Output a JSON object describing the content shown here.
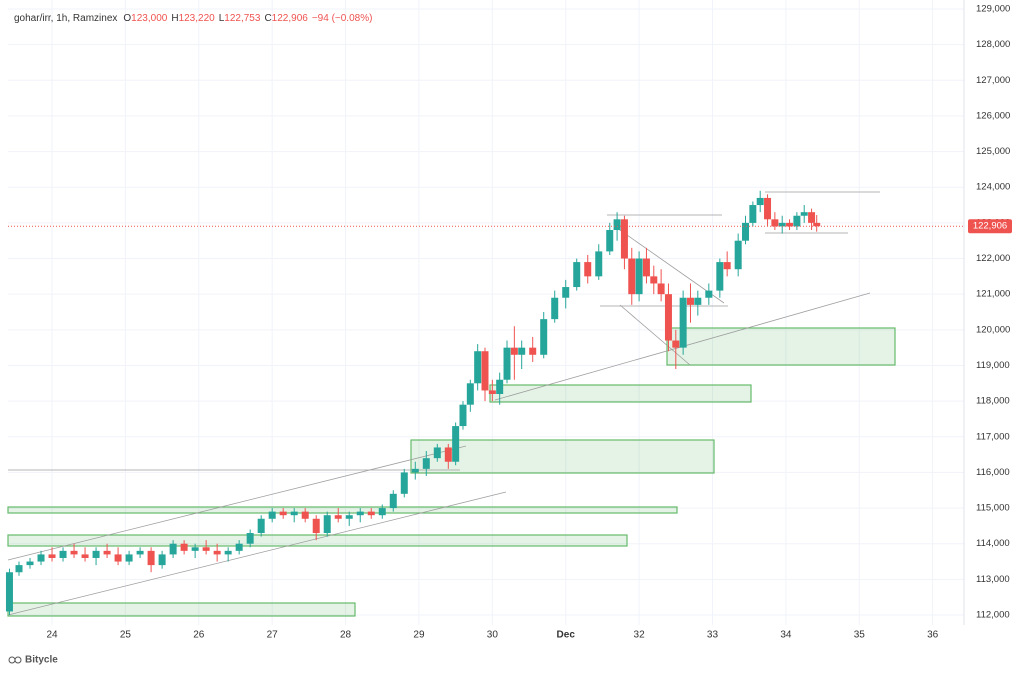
{
  "chart_data": {
    "type": "candlestick",
    "symbol": "gohar/irr, 1h, Ramzinex",
    "ohlc_header": [
      {
        "label": "O",
        "value": "123,000"
      },
      {
        "label": "H",
        "value": "123,220"
      },
      {
        "label": "L",
        "value": "122,753"
      },
      {
        "label": "C",
        "value": "122,906"
      }
    ],
    "change": "−94 (−0.08%)",
    "watermark": "Bitycle",
    "up_color": "#26a69a",
    "down_color": "#ef5350",
    "last_price": {
      "value": 122906,
      "label": "122,906"
    },
    "x": [
      23.42,
      23.55,
      23.7,
      23.85,
      24.0,
      24.15,
      24.3,
      24.45,
      24.6,
      24.75,
      24.9,
      25.05,
      25.2,
      25.35,
      25.5,
      25.65,
      25.8,
      25.95,
      26.1,
      26.25,
      26.4,
      26.55,
      26.7,
      26.85,
      27.0,
      27.15,
      27.3,
      27.45,
      27.6,
      27.75,
      27.9,
      28.05,
      28.2,
      28.35,
      28.5,
      28.65,
      28.8,
      28.95,
      29.1,
      29.25,
      29.4,
      29.5,
      29.6,
      29.7,
      29.8,
      29.9,
      30.0,
      30.1,
      30.2,
      30.3,
      30.4,
      30.55,
      30.7,
      30.85,
      31.0,
      31.15,
      31.3,
      31.45,
      31.6,
      31.7,
      31.8,
      31.9,
      32.0,
      32.1,
      32.2,
      32.3,
      32.4,
      32.5,
      32.6,
      32.7,
      32.8,
      32.95,
      33.1,
      33.2,
      33.35,
      33.45,
      33.55,
      33.65,
      33.75,
      33.85,
      33.95,
      34.05,
      34.15,
      34.25,
      34.35,
      34.42
    ],
    "open": [
      112100,
      113200,
      113400,
      113500,
      113700,
      113600,
      113800,
      113700,
      113600,
      113800,
      113700,
      113500,
      113700,
      113800,
      113400,
      113700,
      114000,
      113800,
      113900,
      113800,
      113700,
      113800,
      114000,
      114300,
      114700,
      114900,
      114800,
      114900,
      114700,
      114300,
      114800,
      114700,
      114800,
      114900,
      114800,
      115000,
      115400,
      116000,
      116100,
      116400,
      116700,
      116300,
      117300,
      117900,
      118500,
      119400,
      118300,
      118200,
      118600,
      119500,
      119300,
      119500,
      119300,
      120300,
      120900,
      121200,
      121900,
      121500,
      122200,
      122800,
      123100,
      122000,
      121000,
      122000,
      121500,
      121300,
      121000,
      119700,
      119500,
      120900,
      120700,
      120900,
      121100,
      121900,
      121700,
      122500,
      123000,
      123500,
      123700,
      123100,
      122900,
      123000,
      122900,
      123200,
      123300,
      123000
    ],
    "high": [
      113300,
      113500,
      113600,
      113800,
      113900,
      113900,
      114000,
      113900,
      113900,
      114000,
      113900,
      113800,
      113900,
      113900,
      113800,
      114100,
      114100,
      114000,
      114100,
      114000,
      113900,
      114100,
      114400,
      114800,
      115000,
      115000,
      115000,
      115000,
      114800,
      114900,
      115000,
      114900,
      115000,
      115000,
      115100,
      115500,
      116100,
      116300,
      116600,
      116800,
      116800,
      117400,
      118000,
      118600,
      119600,
      119500,
      118600,
      118800,
      119700,
      120100,
      119700,
      119800,
      120500,
      121100,
      121400,
      122000,
      122100,
      122400,
      123000,
      123300,
      123200,
      122300,
      122200,
      122300,
      121800,
      121700,
      121300,
      120000,
      121100,
      121300,
      121100,
      121300,
      122000,
      122200,
      122700,
      123200,
      123600,
      123900,
      123800,
      123300,
      123200,
      123100,
      123300,
      123500,
      123400,
      123220
    ],
    "low": [
      112000,
      113100,
      113300,
      113400,
      113500,
      113500,
      113600,
      113500,
      113400,
      113600,
      113400,
      113400,
      113600,
      113200,
      113300,
      113600,
      113700,
      113600,
      113700,
      113500,
      113500,
      113700,
      113900,
      114200,
      114600,
      114700,
      114600,
      114600,
      114100,
      114200,
      114600,
      114500,
      114600,
      114700,
      114700,
      114900,
      115300,
      115800,
      115900,
      116300,
      116100,
      116200,
      117200,
      117700,
      118300,
      118000,
      118000,
      117900,
      118500,
      118600,
      118900,
      119100,
      119200,
      120200,
      120600,
      121100,
      121300,
      121400,
      122100,
      122500,
      121700,
      120700,
      120800,
      121300,
      121000,
      120800,
      119400,
      118900,
      119300,
      120200,
      120400,
      120700,
      120900,
      121500,
      121500,
      122400,
      122900,
      123300,
      122900,
      122800,
      122700,
      122800,
      122800,
      123000,
      122800,
      122753
    ],
    "close": [
      113200,
      113400,
      113500,
      113700,
      113600,
      113800,
      113700,
      113600,
      113800,
      113700,
      113500,
      113700,
      113800,
      113400,
      113700,
      114000,
      113800,
      113900,
      113800,
      113700,
      113800,
      114000,
      114300,
      114700,
      114900,
      114800,
      114900,
      114700,
      114300,
      114800,
      114700,
      114800,
      114900,
      114800,
      115000,
      115400,
      116000,
      116100,
      116400,
      116700,
      116300,
      117300,
      117900,
      118500,
      119400,
      118300,
      118200,
      118600,
      119500,
      119300,
      119500,
      119300,
      120300,
      120900,
      121200,
      121900,
      121500,
      122200,
      122800,
      123100,
      122000,
      121000,
      122000,
      121500,
      121300,
      121000,
      119700,
      119500,
      120900,
      120700,
      120900,
      121100,
      121900,
      121700,
      122500,
      123000,
      123500,
      123700,
      123100,
      122900,
      123000,
      122900,
      123200,
      123300,
      123000,
      122906
    ],
    "xlim": [
      23.4,
      36.4
    ],
    "xticks": [
      24,
      25,
      26,
      27,
      28,
      29,
      30,
      {
        "value": 31,
        "label": "Dec"
      },
      32,
      33,
      34,
      35,
      36
    ],
    "ylim": [
      111720,
      129252
    ],
    "yticks": [
      {
        "value": 112000,
        "label": "112,000"
      },
      {
        "value": 113000,
        "label": "113,000"
      },
      {
        "value": 114000,
        "label": "114,000"
      },
      {
        "value": 115000,
        "label": "115,000"
      },
      {
        "value": 116000,
        "label": "116,000"
      },
      {
        "value": 117000,
        "label": "117,000"
      },
      {
        "value": 118000,
        "label": "118,000"
      },
      {
        "value": 119000,
        "label": "119,000"
      },
      {
        "value": 120000,
        "label": "120,000"
      },
      {
        "value": 121000,
        "label": "121,000"
      },
      {
        "value": 122000,
        "label": "122,000"
      },
      {
        "value": 123000,
        "label": "123,000"
      },
      {
        "value": 124000,
        "label": "124,000"
      },
      {
        "value": 125000,
        "label": "125,000"
      },
      {
        "value": 126000,
        "label": "126,000"
      },
      {
        "value": 127000,
        "label": "127,000"
      },
      {
        "value": 128000,
        "label": "128,000"
      },
      {
        "value": 129000,
        "label": "129,000"
      }
    ],
    "grid": true
  }
}
